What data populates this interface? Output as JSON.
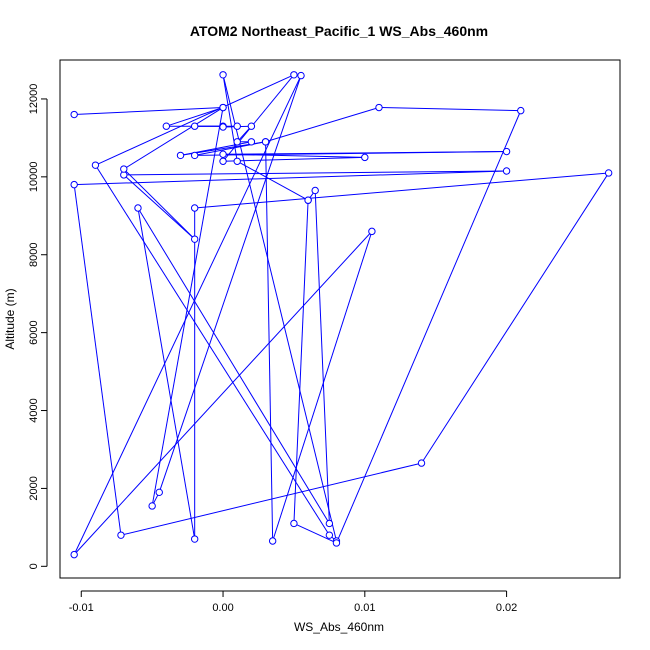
{
  "chart_data": {
    "type": "line",
    "title": "ATOM2 Northeast_Pacific_1 WS_Abs_460nm",
    "xlabel": "WS_Abs_460nm",
    "ylabel": "Altitude (m)",
    "xlim": [
      -0.0115,
      0.028
    ],
    "ylim": [
      -300,
      13000
    ],
    "x_ticks": [
      -0.01,
      0.0,
      0.01,
      0.02
    ],
    "x_tick_labels": [
      "-0.01",
      "0.00",
      "0.01",
      "0.02"
    ],
    "y_ticks": [
      0,
      2000,
      4000,
      6000,
      8000,
      10000,
      12000
    ],
    "y_tick_labels": [
      "0",
      "2000",
      "4000",
      "6000",
      "8000",
      "10000",
      "12000"
    ],
    "grid": false,
    "legend": "none",
    "marker": "open-circle",
    "color": "#0000ff",
    "series": [
      {
        "points": [
          {
            "x": -0.0105,
            "y": 11600
          },
          {
            "x": 0.0,
            "y": 11780
          },
          {
            "x": -0.004,
            "y": 11300
          },
          {
            "x": 0.0,
            "y": 11300
          },
          {
            "x": -0.002,
            "y": 11300
          },
          {
            "x": 0.001,
            "y": 11300
          },
          {
            "x": 0.0,
            "y": 11280
          },
          {
            "x": 0.002,
            "y": 11300
          },
          {
            "x": 0.001,
            "y": 10900
          },
          {
            "x": 0.002,
            "y": 10900
          },
          {
            "x": -0.003,
            "y": 10550
          },
          {
            "x": 0.003,
            "y": 10900
          },
          {
            "x": -0.002,
            "y": 10550
          },
          {
            "x": 0.02,
            "y": 10650
          },
          {
            "x": 0.0,
            "y": 10580
          },
          {
            "x": 0.01,
            "y": 10500
          },
          {
            "x": 0.0,
            "y": 10400
          },
          {
            "x": 0.005,
            "y": 12620
          },
          {
            "x": -0.009,
            "y": 10300
          },
          {
            "x": 0.0075,
            "y": 800
          },
          {
            "x": 0.008,
            "y": 650
          },
          {
            "x": 0.0,
            "y": 12620
          },
          {
            "x": 0.001,
            "y": 10400
          },
          {
            "x": 0.006,
            "y": 9400
          },
          {
            "x": 0.0065,
            "y": 9650
          },
          {
            "x": 0.0075,
            "y": 1100
          },
          {
            "x": -0.006,
            "y": 9200
          },
          {
            "x": -0.002,
            "y": 700
          },
          {
            "x": -0.002,
            "y": 9200
          },
          {
            "x": 0.0272,
            "y": 10100
          },
          {
            "x": 0.014,
            "y": 2650
          },
          {
            "x": -0.0072,
            "y": 800
          },
          {
            "x": -0.0105,
            "y": 9800
          },
          {
            "x": 0.02,
            "y": 10150
          },
          {
            "x": -0.007,
            "y": 10050
          },
          {
            "x": -0.002,
            "y": 8400
          },
          {
            "x": -0.007,
            "y": 10200
          },
          {
            "x": 0.0,
            "y": 11780
          },
          {
            "x": -0.005,
            "y": 1550
          },
          {
            "x": -0.0045,
            "y": 1900
          },
          {
            "x": 0.0055,
            "y": 12600
          },
          {
            "x": -0.0105,
            "y": 300
          },
          {
            "x": 0.0105,
            "y": 8600
          },
          {
            "x": 0.0035,
            "y": 650
          },
          {
            "x": 0.003,
            "y": 10900
          },
          {
            "x": 0.011,
            "y": 11780
          },
          {
            "x": 0.021,
            "y": 11700
          },
          {
            "x": 0.008,
            "y": 600
          },
          {
            "x": 0.005,
            "y": 1100
          },
          {
            "x": 0.006,
            "y": 9400
          }
        ]
      }
    ]
  }
}
